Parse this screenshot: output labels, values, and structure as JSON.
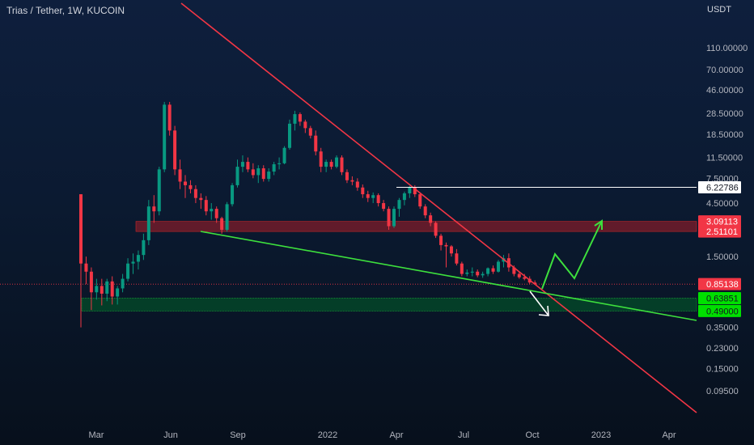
{
  "header": {
    "title": "Trias / Tether, 1W, KUCOIN",
    "unit": "USDT"
  },
  "chart_data": {
    "type": "candlestick",
    "symbol": "Trias / Tether",
    "interval": "1W",
    "exchange": "KUCOIN",
    "y_scale": "log",
    "ylim": [
      0.075,
      150
    ],
    "price_ticks": [
      "110.00000",
      "70.00000",
      "46.00000",
      "28.50000",
      "18.50000",
      "11.50000",
      "7.50000",
      "4.50000",
      "1.50000",
      "0.35000",
      "0.23000",
      "0.15000",
      "0.09500"
    ],
    "x_ticks": [
      "Mar",
      "Jun",
      "Sep",
      "2022",
      "Apr",
      "Jul",
      "Oct",
      "2023",
      "Apr"
    ],
    "price_labels": [
      {
        "text": "6.22786",
        "value": 6.22786,
        "bg": "#ffffff",
        "fg": "#131722"
      },
      {
        "text": "3.09113",
        "value": 3.09113,
        "bg": "#f23645",
        "fg": "#ffffff"
      },
      {
        "text": "2.51101",
        "value": 2.51101,
        "bg": "#f23645",
        "fg": "#ffffff"
      },
      {
        "text": "0.85138",
        "value": 0.85138,
        "bg": "#f23645",
        "fg": "#ffffff"
      },
      {
        "text": "0.63851",
        "value": 0.63851,
        "bg": "#00e000",
        "fg": "#131722"
      },
      {
        "text": "0.49000",
        "value": 0.49,
        "bg": "#00e000",
        "fg": "#131722"
      }
    ],
    "candles": [
      [
        5.4,
        5.4,
        0.35,
        1.3
      ],
      [
        1.3,
        1.5,
        0.85,
        1.1
      ],
      [
        1.1,
        1.2,
        0.5,
        0.72
      ],
      [
        0.72,
        0.95,
        0.62,
        0.82
      ],
      [
        0.82,
        0.95,
        0.55,
        0.7
      ],
      [
        0.7,
        0.95,
        0.6,
        0.9
      ],
      [
        0.9,
        1.0,
        0.56,
        0.66
      ],
      [
        0.66,
        0.82,
        0.56,
        0.78
      ],
      [
        0.78,
        1.05,
        0.72,
        0.95
      ],
      [
        0.95,
        1.45,
        0.9,
        1.3
      ],
      [
        1.3,
        1.6,
        1.05,
        1.35
      ],
      [
        1.35,
        1.7,
        1.15,
        1.55
      ],
      [
        1.55,
        2.4,
        1.4,
        2.1
      ],
      [
        2.1,
        4.8,
        1.9,
        4.2
      ],
      [
        4.2,
        5.3,
        3.0,
        3.8
      ],
      [
        3.8,
        9.5,
        3.5,
        9.0
      ],
      [
        9.0,
        36,
        8.5,
        34
      ],
      [
        34,
        36,
        18,
        20
      ],
      [
        20,
        22,
        8,
        9
      ],
      [
        9,
        11,
        6,
        7
      ],
      [
        7,
        8,
        5,
        6.5
      ],
      [
        6.5,
        7.2,
        5.5,
        6.0
      ],
      [
        6.0,
        6.5,
        4.5,
        5.0
      ],
      [
        5.0,
        5.5,
        4.0,
        4.8
      ],
      [
        4.8,
        5.2,
        3.5,
        3.8
      ],
      [
        3.8,
        4.5,
        3.2,
        4.0
      ],
      [
        4.0,
        4.2,
        3.0,
        3.3
      ],
      [
        3.3,
        3.4,
        2.4,
        2.6
      ],
      [
        2.6,
        4.6,
        2.5,
        4.4
      ],
      [
        4.4,
        6.8,
        4.2,
        6.5
      ],
      [
        6.5,
        11,
        6.2,
        9.5
      ],
      [
        9.5,
        12,
        8.5,
        10.5
      ],
      [
        10.5,
        11.5,
        8.5,
        9.0
      ],
      [
        9.0,
        10.2,
        7.5,
        8.0
      ],
      [
        8.0,
        9.8,
        6.8,
        9.2
      ],
      [
        9.2,
        9.8,
        7.0,
        7.4
      ],
      [
        7.4,
        9.2,
        7.0,
        8.6
      ],
      [
        8.6,
        10.5,
        8.0,
        10.0
      ],
      [
        10.0,
        11.5,
        9.0,
        10.2
      ],
      [
        10.2,
        14.5,
        10.0,
        14.0
      ],
      [
        14.0,
        25,
        13.5,
        23
      ],
      [
        23,
        30,
        20,
        28
      ],
      [
        28,
        29,
        22,
        24
      ],
      [
        24,
        25,
        19,
        21
      ],
      [
        21,
        22,
        17,
        18
      ],
      [
        18,
        20,
        12,
        13
      ],
      [
        13,
        14,
        8.5,
        9.5
      ],
      [
        9.5,
        11,
        8.5,
        10.5
      ],
      [
        10.5,
        11,
        9.0,
        9.5
      ],
      [
        9.5,
        12,
        9.2,
        11.5
      ],
      [
        11.5,
        12,
        8.0,
        8.5
      ],
      [
        8.5,
        9.0,
        6.8,
        7.2
      ],
      [
        7.2,
        7.8,
        6.5,
        7.0
      ],
      [
        7.0,
        7.5,
        5.8,
        6.2
      ],
      [
        6.2,
        6.6,
        5.0,
        5.4
      ],
      [
        5.4,
        5.8,
        4.6,
        5.0
      ],
      [
        5.0,
        5.6,
        4.5,
        5.3
      ],
      [
        5.3,
        5.5,
        4.2,
        4.5
      ],
      [
        4.5,
        4.8,
        3.8,
        4.0
      ],
      [
        4.0,
        4.2,
        2.6,
        2.8
      ],
      [
        2.8,
        4.2,
        2.7,
        4.0
      ],
      [
        4.0,
        5.0,
        3.4,
        4.8
      ],
      [
        4.8,
        5.7,
        4.3,
        5.5
      ],
      [
        5.5,
        6.4,
        5.0,
        6.2
      ],
      [
        6.2,
        6.5,
        5.1,
        5.4
      ],
      [
        5.4,
        5.6,
        4.0,
        4.2
      ],
      [
        4.2,
        4.4,
        3.3,
        3.5
      ],
      [
        3.5,
        3.7,
        2.8,
        3.0
      ],
      [
        3.0,
        3.1,
        2.2,
        2.3
      ],
      [
        2.3,
        2.4,
        1.7,
        1.9
      ],
      [
        1.9,
        2.0,
        1.2,
        1.85
      ],
      [
        1.85,
        1.9,
        1.5,
        1.6
      ],
      [
        1.6,
        1.75,
        1.25,
        1.3
      ],
      [
        1.3,
        1.35,
        1.0,
        1.05
      ],
      [
        1.05,
        1.15,
        1.0,
        1.08
      ],
      [
        1.08,
        1.2,
        1.0,
        1.1
      ],
      [
        1.1,
        1.15,
        0.98,
        1.02
      ],
      [
        1.02,
        1.1,
        0.97,
        1.05
      ],
      [
        1.05,
        1.2,
        1.0,
        1.18
      ],
      [
        1.18,
        1.25,
        1.05,
        1.1
      ],
      [
        1.1,
        1.4,
        1.08,
        1.35
      ],
      [
        1.35,
        1.55,
        1.2,
        1.45
      ],
      [
        1.45,
        1.6,
        1.1,
        1.2
      ],
      [
        1.2,
        1.25,
        1.0,
        1.05
      ],
      [
        1.05,
        1.1,
        0.95,
        0.98
      ],
      [
        0.98,
        1.05,
        0.92,
        0.95
      ],
      [
        0.95,
        1.0,
        0.85,
        0.88
      ],
      [
        0.88,
        0.92,
        0.84,
        0.85138
      ]
    ]
  }
}
